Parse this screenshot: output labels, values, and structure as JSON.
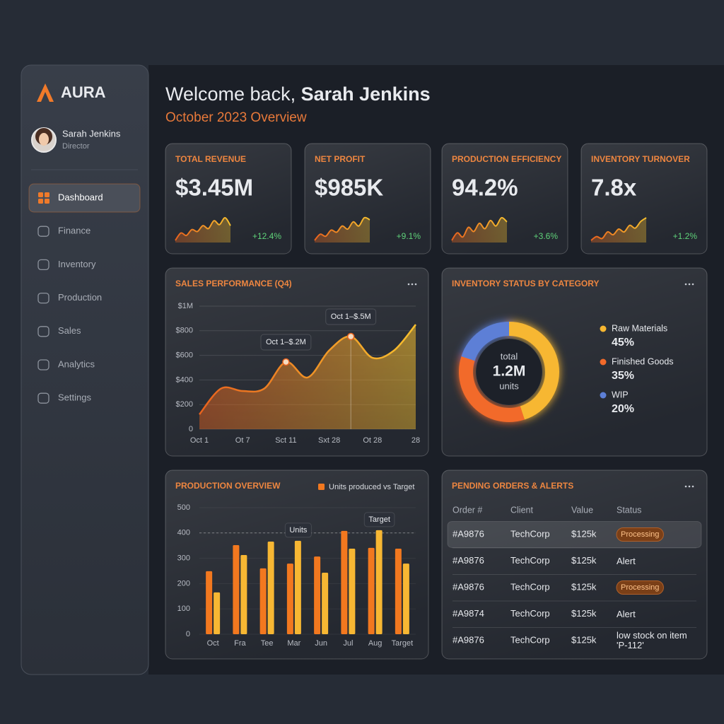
{
  "sidebar": {
    "brand": "AURA",
    "user": {
      "name": "Sarah Jenkins",
      "role": "Director"
    },
    "nav": [
      "Dashboard",
      "Finance",
      "Inventory",
      "Production",
      "Sales",
      "Analytics",
      "Settings"
    ],
    "active": 0
  },
  "header": {
    "greeting": "Welcome back,",
    "name": "Sarah Jenkins",
    "subtitle": "October 2023 Overview"
  },
  "kpis": [
    {
      "label": "TOTAL REVENUE",
      "value": "$3.45M",
      "change": "+12.4%",
      "trend": [
        2,
        3.5,
        3,
        4.2,
        3.8,
        5,
        4.4,
        6,
        5.2,
        6.6,
        5
      ]
    },
    {
      "label": "NET PROFIT",
      "value": "$985K",
      "change": "+9.1%",
      "trend": [
        2,
        3.2,
        2.8,
        4,
        3.6,
        4.8,
        4.2,
        5.6,
        4.8,
        6.4,
        6
      ]
    },
    {
      "label": "PRODUCTION EFFICIENCY",
      "value": "94.2%",
      "change": "+3.6%",
      "trend": [
        2.5,
        3.6,
        3,
        4.4,
        3.8,
        5,
        4.2,
        5.4,
        4.6,
        5.8,
        5.2
      ]
    },
    {
      "label": "INVENTORY TURNOVER",
      "value": "7.8x",
      "change": "+1.2%",
      "trend": [
        2,
        2.8,
        2.4,
        3.8,
        3.2,
        4.4,
        3.8,
        5.2,
        4.6,
        6,
        6.8
      ]
    }
  ],
  "chart_data": [
    {
      "type": "area",
      "title": "SALES PERFORMANCE (Q4)",
      "categories": [
        "Oct 1",
        null,
        "Ot 7",
        null,
        "Sct 11",
        null,
        "Sxt 28",
        null,
        "Ot 28",
        null,
        "28"
      ],
      "values": [
        120,
        330,
        310,
        330,
        546,
        420,
        640,
        753,
        580,
        640,
        850
      ],
      "ylim": [
        0,
        1000
      ],
      "yticks": [
        0,
        {
          "value": 200,
          "label": "$200"
        },
        {
          "value": 400,
          "label": "$400"
        },
        {
          "value": 600,
          "label": "$600"
        },
        {
          "value": 800,
          "label": "$800"
        },
        {
          "value": 1000,
          "label": "$1M"
        }
      ],
      "grid": true,
      "colors": [
        "#e8621e",
        "#f7c02e"
      ],
      "annotations": [
        "Oct 1–$.2M",
        "Oct 1–$.5M"
      ]
    },
    {
      "type": "donut",
      "title": "INVENTORY STATUS BY CATEGORY",
      "center": {
        "label": "total",
        "value": "1.2M",
        "unit": "units"
      },
      "categories": [
        "Raw Materials",
        "Finished Goods",
        "WIP"
      ],
      "values": [
        45,
        35,
        20
      ],
      "value_labels": [
        "45%",
        "35%",
        "20%"
      ],
      "colors": [
        "#f7b731",
        "#f26a2a",
        "#5d7fd6"
      ]
    },
    {
      "type": "bar",
      "title": "PRODUCTION OVERVIEW",
      "legend": "Units produced vs Target",
      "categories": [
        "Oct",
        "Fra",
        "Tee",
        "Mar",
        "Jun",
        "Jul",
        "Aug",
        "Target"
      ],
      "series": [
        {
          "name": "Units",
          "color": "#f2781f",
          "values": [
            249,
            352,
            260,
            279,
            307,
            408,
            341,
            338
          ]
        },
        {
          "name": "Target",
          "color": "#f7b733",
          "values": [
            165,
            313,
            366,
            369,
            243,
            338,
            411,
            279
          ]
        }
      ],
      "ylim": [
        0,
        500
      ],
      "yticks": [
        0,
        100,
        200,
        300,
        400,
        500
      ],
      "target_line": 400
    }
  ],
  "orders": {
    "title": "PENDING ORDERS & ALERTS",
    "columns": [
      "Order #",
      "Client",
      "Value",
      "Status"
    ],
    "rows": [
      {
        "cells": [
          "#A9876",
          "TechCorp",
          "$125k",
          "Processing"
        ],
        "badge": true
      },
      {
        "cells": [
          "#A9876",
          "TechCorp",
          "$125k",
          "Alert"
        ],
        "badge": false
      },
      {
        "cells": [
          "#A9876",
          "TechCorp",
          "$125k",
          "Processing"
        ],
        "badge": true
      },
      {
        "cells": [
          "#A9874",
          "TechCorp",
          "$125k",
          "Alert"
        ],
        "badge": false
      },
      {
        "cells": [
          "#A9876",
          "TechCorp",
          "$125k",
          "low stock on item 'P-112'"
        ],
        "badge": false
      }
    ]
  }
}
